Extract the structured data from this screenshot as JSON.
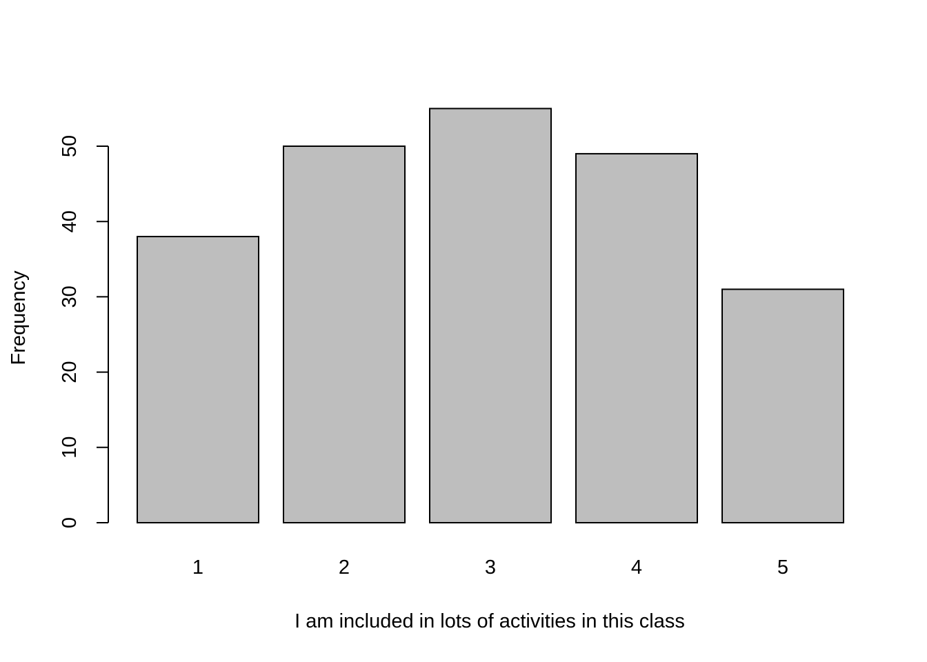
{
  "chart_data": {
    "type": "bar",
    "categories": [
      "1",
      "2",
      "3",
      "4",
      "5"
    ],
    "values": [
      38,
      50,
      55,
      49,
      31
    ],
    "title": "",
    "xlabel": "I am included in lots of activities in this class",
    "ylabel": "Frequency",
    "ylim": [
      0,
      55
    ],
    "yticks": [
      0,
      10,
      20,
      30,
      40,
      50
    ],
    "ytick_labels": [
      "0",
      "10",
      "20",
      "30",
      "40",
      "50"
    ],
    "grid": false,
    "legend": "none",
    "bar_color": "#bebebe",
    "edge_color": "#000000"
  }
}
